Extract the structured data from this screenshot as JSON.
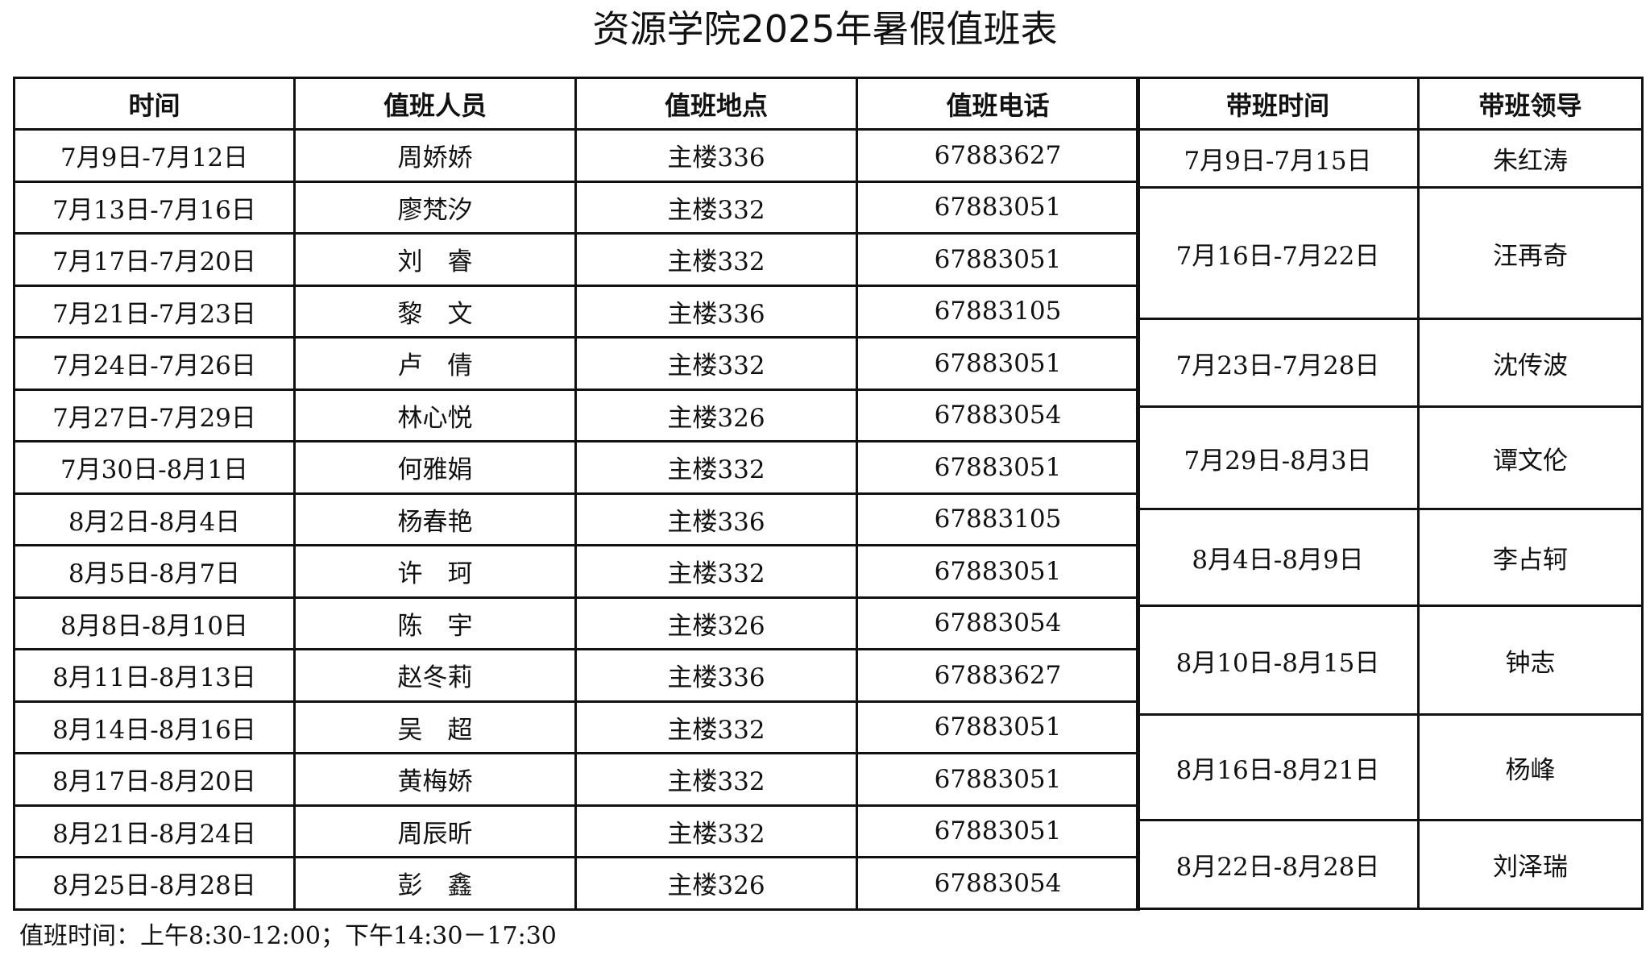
{
  "title": "资源学院2025年暑假值班表",
  "duty_table": {
    "headers": [
      "时间",
      "值班人员",
      "值班地点",
      "值班电话"
    ],
    "rows": [
      [
        "7月9日-7月12日",
        "周娇娇",
        "主楼336",
        "67883627"
      ],
      [
        "7月13日-7月16日",
        "廖梵汐",
        "主楼332",
        "67883051"
      ],
      [
        "7月17日-7月20日",
        "刘　睿",
        "主楼332",
        "67883051"
      ],
      [
        "7月21日-7月23日",
        "黎　文",
        "主楼336",
        "67883105"
      ],
      [
        "7月24日-7月26日",
        "卢　倩",
        "主楼332",
        "67883051"
      ],
      [
        "7月27日-7月29日",
        "林心悦",
        "主楼326",
        "67883054"
      ],
      [
        "7月30日-8月1日",
        "何雅娟",
        "主楼332",
        "67883051"
      ],
      [
        "8月2日-8月4日",
        "杨春艳",
        "主楼336",
        "67883105"
      ],
      [
        "8月5日-8月7日",
        "许　珂",
        "主楼332",
        "67883051"
      ],
      [
        "8月8日-8月10日",
        "陈　宇",
        "主楼326",
        "67883054"
      ],
      [
        "8月11日-8月13日",
        "赵冬莉",
        "主楼336",
        "67883627"
      ],
      [
        "8月14日-8月16日",
        "吴　超",
        "主楼332",
        "67883051"
      ],
      [
        "8月17日-8月20日",
        "黄梅娇",
        "主楼332",
        "67883051"
      ],
      [
        "8月21日-8月24日",
        "周辰昕",
        "主楼332",
        "67883051"
      ],
      [
        "8月25日-8月28日",
        "彭　鑫",
        "主楼326",
        "67883054"
      ]
    ]
  },
  "leader_table": {
    "headers": [
      "带班时间",
      "带班领导"
    ],
    "rows": [
      [
        "7月9日-7月15日",
        "朱红涛"
      ],
      [
        "7月16日-7月22日",
        "汪再奇"
      ],
      [
        "7月23日-7月28日",
        "沈传波"
      ],
      [
        "7月29日-8月3日",
        "谭文伦"
      ],
      [
        "8月4日-8月9日",
        "李占轲"
      ],
      [
        "8月10日-8月15日",
        "钟志"
      ],
      [
        "8月16日-8月21日",
        "杨峰"
      ],
      [
        "8月22日-8月28日",
        "刘泽瑞"
      ]
    ]
  },
  "footer": "值班时间：上午8:30-12:00；下午14:30－17:30"
}
